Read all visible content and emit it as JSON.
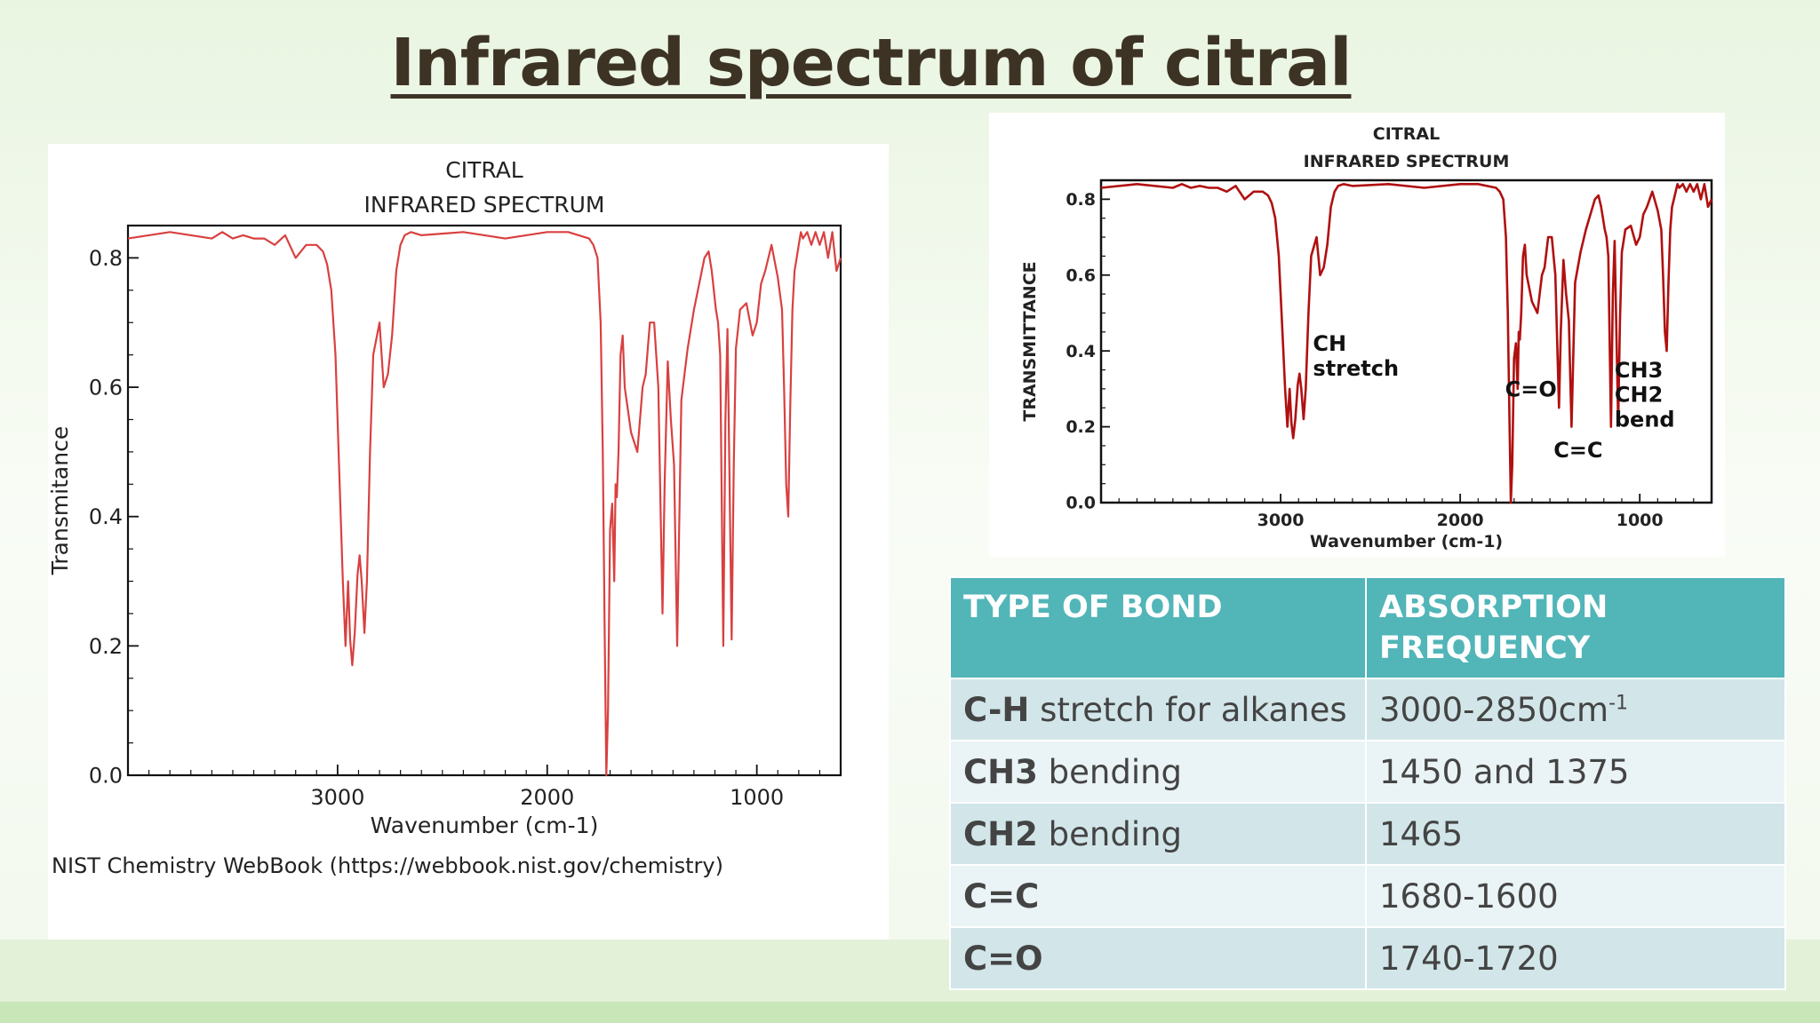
{
  "slide": {
    "title": "Infrared spectrum of citral"
  },
  "chart_data": [
    {
      "type": "line",
      "title": "CITRAL",
      "subtitle": "INFRARED SPECTRUM",
      "xlabel": "Wavenumber (cm-1)",
      "ylabel": "Transmitance",
      "xlim": [
        4000,
        600
      ],
      "ylim": [
        0.0,
        0.85
      ],
      "x_ticks": [
        3000,
        2000,
        1000
      ],
      "y_ticks": [
        0.0,
        0.2,
        0.4,
        0.6,
        0.8
      ],
      "x_tick_labels": [
        "3000",
        "2000",
        "1000"
      ],
      "y_tick_labels": [
        "0.0",
        "0.2",
        "0.4",
        "0.6",
        "0.8"
      ],
      "series": [
        {
          "color": "#d94040",
          "x": [
            4000,
            3800,
            3600,
            3550,
            3500,
            3450,
            3400,
            3350,
            3300,
            3250,
            3200,
            3150,
            3100,
            3070,
            3050,
            3030,
            3010,
            2990,
            2975,
            2962,
            2950,
            2940,
            2930,
            2918,
            2905,
            2895,
            2885,
            2872,
            2860,
            2845,
            2830,
            2800,
            2780,
            2760,
            2740,
            2720,
            2700,
            2680,
            2650,
            2600,
            2400,
            2200,
            2000,
            1900,
            1800,
            1780,
            1760,
            1745,
            1735,
            1725,
            1718,
            1710,
            1700,
            1690,
            1680,
            1674,
            1668,
            1660,
            1650,
            1640,
            1630,
            1600,
            1570,
            1545,
            1530,
            1510,
            1490,
            1470,
            1450,
            1440,
            1425,
            1410,
            1395,
            1380,
            1360,
            1330,
            1300,
            1250,
            1230,
            1215,
            1195,
            1185,
            1175,
            1160,
            1150,
            1140,
            1130,
            1120,
            1110,
            1100,
            1080,
            1050,
            1020,
            1000,
            980,
            960,
            930,
            900,
            880,
            870,
            860,
            850,
            840,
            830,
            820,
            810,
            800,
            790,
            780,
            760,
            740,
            720,
            700,
            680,
            660,
            640,
            620,
            600
          ],
          "y": [
            0.83,
            0.84,
            0.83,
            0.84,
            0.83,
            0.835,
            0.83,
            0.83,
            0.82,
            0.835,
            0.8,
            0.82,
            0.82,
            0.81,
            0.79,
            0.75,
            0.65,
            0.45,
            0.3,
            0.2,
            0.3,
            0.21,
            0.17,
            0.22,
            0.31,
            0.34,
            0.3,
            0.22,
            0.3,
            0.5,
            0.65,
            0.7,
            0.6,
            0.62,
            0.68,
            0.78,
            0.82,
            0.835,
            0.84,
            0.835,
            0.84,
            0.83,
            0.84,
            0.84,
            0.83,
            0.82,
            0.8,
            0.7,
            0.5,
            0.2,
            0.0,
            0.1,
            0.38,
            0.42,
            0.3,
            0.45,
            0.43,
            0.5,
            0.65,
            0.68,
            0.6,
            0.53,
            0.5,
            0.6,
            0.62,
            0.7,
            0.7,
            0.6,
            0.25,
            0.45,
            0.64,
            0.55,
            0.48,
            0.2,
            0.58,
            0.66,
            0.72,
            0.8,
            0.81,
            0.78,
            0.72,
            0.7,
            0.65,
            0.2,
            0.55,
            0.69,
            0.45,
            0.21,
            0.48,
            0.66,
            0.72,
            0.73,
            0.68,
            0.7,
            0.76,
            0.78,
            0.82,
            0.77,
            0.72,
            0.6,
            0.45,
            0.4,
            0.58,
            0.72,
            0.78,
            0.8,
            0.82,
            0.84,
            0.83,
            0.84,
            0.82,
            0.84,
            0.82,
            0.84,
            0.8,
            0.84,
            0.78,
            0.8
          ]
        }
      ],
      "source_note": "NIST Chemistry WebBook (https://webbook.nist.gov/chemistry)"
    },
    {
      "type": "line",
      "title": "CITRAL",
      "subtitle": "INFRARED SPECTRUM",
      "xlabel": "Wavenumber (cm-1)",
      "ylabel": "TRANSMITTANCE",
      "xlim": [
        4000,
        600
      ],
      "ylim": [
        0.0,
        0.85
      ],
      "x_ticks": [
        3000,
        2000,
        1000
      ],
      "y_ticks": [
        0.0,
        0.2,
        0.4,
        0.6,
        0.8
      ],
      "x_tick_labels": [
        "3000",
        "2000",
        "1000"
      ],
      "y_tick_labels": [
        "0.0",
        "0.2",
        "0.4",
        "0.6",
        "0.8"
      ],
      "series": [
        {
          "color": "#b01010",
          "x": [
            4000,
            3800,
            3600,
            3550,
            3500,
            3450,
            3400,
            3350,
            3300,
            3250,
            3200,
            3150,
            3100,
            3070,
            3050,
            3030,
            3010,
            2990,
            2975,
            2962,
            2950,
            2940,
            2930,
            2918,
            2905,
            2895,
            2885,
            2872,
            2860,
            2845,
            2830,
            2800,
            2780,
            2760,
            2740,
            2720,
            2700,
            2680,
            2650,
            2600,
            2400,
            2200,
            2000,
            1900,
            1800,
            1780,
            1760,
            1745,
            1735,
            1725,
            1718,
            1710,
            1700,
            1690,
            1680,
            1674,
            1668,
            1660,
            1650,
            1640,
            1630,
            1600,
            1570,
            1545,
            1530,
            1510,
            1490,
            1470,
            1450,
            1440,
            1425,
            1410,
            1395,
            1380,
            1360,
            1330,
            1300,
            1250,
            1230,
            1215,
            1195,
            1185,
            1175,
            1160,
            1150,
            1140,
            1130,
            1120,
            1110,
            1100,
            1080,
            1050,
            1020,
            1000,
            980,
            960,
            930,
            900,
            880,
            870,
            860,
            850,
            840,
            830,
            820,
            810,
            800,
            790,
            780,
            760,
            740,
            720,
            700,
            680,
            660,
            640,
            620,
            600
          ],
          "y": [
            0.83,
            0.84,
            0.83,
            0.84,
            0.83,
            0.835,
            0.83,
            0.83,
            0.82,
            0.835,
            0.8,
            0.82,
            0.82,
            0.81,
            0.79,
            0.75,
            0.65,
            0.45,
            0.3,
            0.2,
            0.3,
            0.21,
            0.17,
            0.22,
            0.31,
            0.34,
            0.3,
            0.22,
            0.3,
            0.5,
            0.65,
            0.7,
            0.6,
            0.62,
            0.68,
            0.78,
            0.82,
            0.835,
            0.84,
            0.835,
            0.84,
            0.83,
            0.84,
            0.84,
            0.83,
            0.82,
            0.8,
            0.7,
            0.5,
            0.2,
            0.0,
            0.1,
            0.38,
            0.42,
            0.3,
            0.45,
            0.43,
            0.5,
            0.65,
            0.68,
            0.6,
            0.53,
            0.5,
            0.6,
            0.62,
            0.7,
            0.7,
            0.6,
            0.25,
            0.45,
            0.64,
            0.55,
            0.48,
            0.2,
            0.58,
            0.66,
            0.72,
            0.8,
            0.81,
            0.78,
            0.72,
            0.7,
            0.65,
            0.2,
            0.55,
            0.69,
            0.45,
            0.21,
            0.48,
            0.66,
            0.72,
            0.73,
            0.68,
            0.7,
            0.76,
            0.78,
            0.82,
            0.77,
            0.72,
            0.6,
            0.45,
            0.4,
            0.58,
            0.72,
            0.78,
            0.8,
            0.82,
            0.84,
            0.83,
            0.84,
            0.82,
            0.84,
            0.82,
            0.84,
            0.8,
            0.84,
            0.78,
            0.8
          ]
        }
      ],
      "annotations": [
        {
          "text": "CH\nstretch",
          "x": 2820,
          "y": 0.4
        },
        {
          "text": "C=O",
          "x": 1750,
          "y": 0.28
        },
        {
          "text": "C=C",
          "x": 1480,
          "y": 0.12
        },
        {
          "text": "CH3\nCH2\nbend",
          "x": 1140,
          "y": 0.33
        }
      ]
    }
  ],
  "table": {
    "headers": [
      "TYPE OF BOND",
      "ABSORPTION\nFREQUENCY"
    ],
    "rows": [
      {
        "bond_bold": "C-H",
        "bond_rest": " stretch for alkanes",
        "frequency": "3000-2850cm",
        "superscript": "-1"
      },
      {
        "bond_bold": "CH3",
        "bond_rest": " bending",
        "frequency": "1450 and 1375",
        "superscript": ""
      },
      {
        "bond_bold": "CH2",
        "bond_rest": " bending",
        "frequency": "1465",
        "superscript": ""
      },
      {
        "bond_bold": "C=C",
        "bond_rest": "",
        "frequency": "1680-1600",
        "superscript": ""
      },
      {
        "bond_bold": "C=O",
        "bond_rest": "",
        "frequency": "1740-1720",
        "superscript": ""
      }
    ]
  }
}
